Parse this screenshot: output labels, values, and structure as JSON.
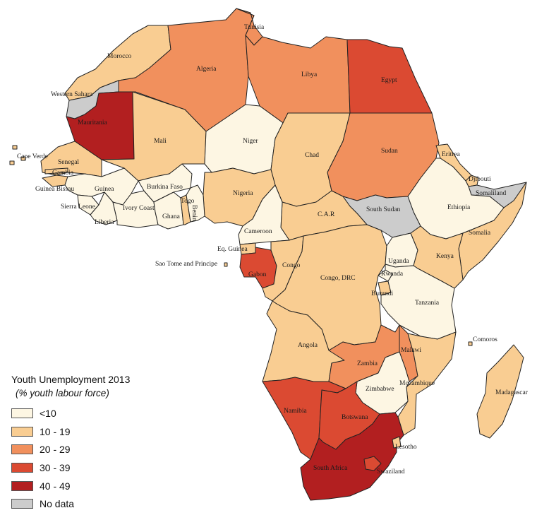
{
  "map": {
    "legend": {
      "title": "Youth Unemployment 2013",
      "subtitle": "(% youth labour force)",
      "classes": [
        {
          "label": "<10",
          "color": "#fdf6e3"
        },
        {
          "label": "10 - 19",
          "color": "#f9cd92"
        },
        {
          "label": "20 - 29",
          "color": "#f1905d"
        },
        {
          "label": "30 - 39",
          "color": "#db4a32"
        },
        {
          "label": "40 - 49",
          "color": "#b21f20"
        },
        {
          "label": "No data",
          "color": "#cccccc"
        }
      ]
    },
    "countries": [
      {
        "name": "Morocco",
        "class": 1
      },
      {
        "name": "Algeria",
        "class": 2
      },
      {
        "name": "Tunisia",
        "class": 2
      },
      {
        "name": "Libya",
        "class": 2
      },
      {
        "name": "Egypt",
        "class": 3
      },
      {
        "name": "Western Sahara",
        "class": 5
      },
      {
        "name": "Mauritania",
        "class": 4
      },
      {
        "name": "Mali",
        "class": 1
      },
      {
        "name": "Niger",
        "class": 0
      },
      {
        "name": "Chad",
        "class": 1
      },
      {
        "name": "Sudan",
        "class": 2
      },
      {
        "name": "Eritrea",
        "class": 1
      },
      {
        "name": "Djibouti",
        "class": 1
      },
      {
        "name": "Somaliland",
        "class": 5
      },
      {
        "name": "Ethiopia",
        "class": 0
      },
      {
        "name": "Somalia",
        "class": 1
      },
      {
        "name": "South Sudan",
        "class": 5
      },
      {
        "name": "C.A.R",
        "class": 1
      },
      {
        "name": "Cameroon",
        "class": 0
      },
      {
        "name": "Nigeria",
        "class": 1
      },
      {
        "name": "Senegal",
        "class": 1
      },
      {
        "name": "Gambia",
        "class": 1
      },
      {
        "name": "Guinea Bissau",
        "class": 1
      },
      {
        "name": "Guinea",
        "class": 0
      },
      {
        "name": "Sierra Leone",
        "class": 0
      },
      {
        "name": "Liberia",
        "class": 0
      },
      {
        "name": "Ivory Coast",
        "class": 0
      },
      {
        "name": "Burkina Faso",
        "class": 0
      },
      {
        "name": "Ghana",
        "class": 0
      },
      {
        "name": "Togo",
        "class": 1
      },
      {
        "name": "Benin",
        "class": 0
      },
      {
        "name": "Cape Verde",
        "class": 1
      },
      {
        "name": "Eq. Guinea",
        "class": 1
      },
      {
        "name": "Gabon",
        "class": 3
      },
      {
        "name": "Congo",
        "class": 1
      },
      {
        "name": "Congo, DRC",
        "class": 1
      },
      {
        "name": "Uganda",
        "class": 0
      },
      {
        "name": "Kenya",
        "class": 1
      },
      {
        "name": "Rwanda",
        "class": 0
      },
      {
        "name": "Burundi",
        "class": 1
      },
      {
        "name": "Tanzania",
        "class": 0
      },
      {
        "name": "Angola",
        "class": 1
      },
      {
        "name": "Zambia",
        "class": 2
      },
      {
        "name": "Malawi",
        "class": 2
      },
      {
        "name": "Mozambique",
        "class": 1
      },
      {
        "name": "Zimbabwe",
        "class": 0
      },
      {
        "name": "Namibia",
        "class": 3
      },
      {
        "name": "Botswana",
        "class": 3
      },
      {
        "name": "South Africa",
        "class": 4
      },
      {
        "name": "Lesotho",
        "class": 3
      },
      {
        "name": "Swaziland",
        "class": 1
      },
      {
        "name": "Madagascar",
        "class": 1
      },
      {
        "name": "Comoros",
        "class": 1
      },
      {
        "name": "Sao Tome and Principe",
        "class": 1
      }
    ]
  }
}
